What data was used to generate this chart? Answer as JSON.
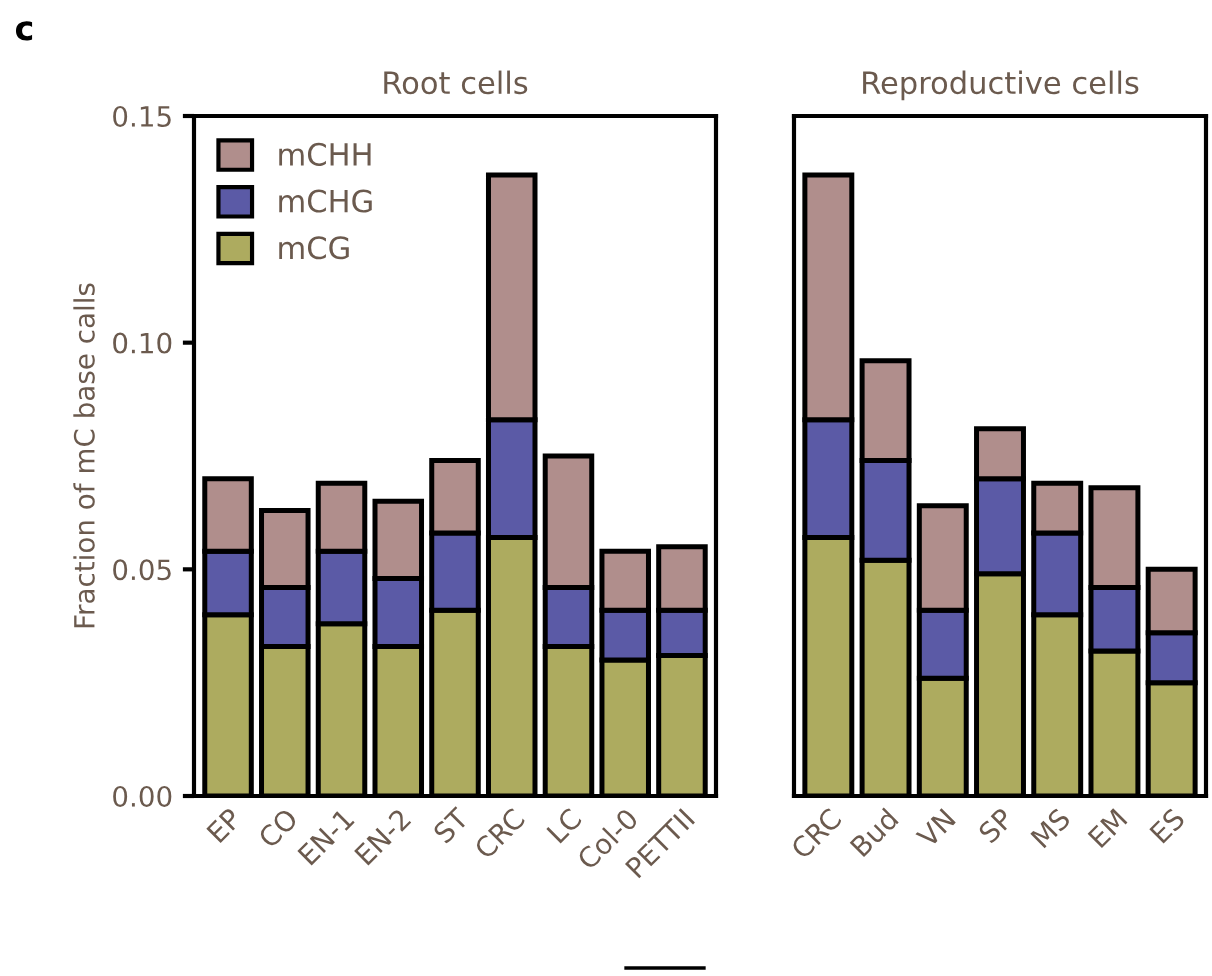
{
  "chart_data": [
    {
      "type": "bar",
      "stacked": true,
      "title": "Root cells",
      "ylabel": "Fraction of mC base calls",
      "annotations": [
        "c"
      ],
      "categories": [
        "EP",
        "CO",
        "EN-1",
        "EN-2",
        "ST",
        "CRC",
        "LC",
        "Col-0",
        "PETTII"
      ],
      "series": [
        {
          "name": "mCG",
          "color": "#adab5f",
          "values": [
            0.04,
            0.033,
            0.038,
            0.033,
            0.041,
            0.057,
            0.033,
            0.03,
            0.031
          ]
        },
        {
          "name": "mCHG",
          "color": "#5b5aa6",
          "values": [
            0.014,
            0.013,
            0.016,
            0.015,
            0.017,
            0.026,
            0.013,
            0.011,
            0.01
          ]
        },
        {
          "name": "mCHH",
          "color": "#b08e8c",
          "values": [
            0.016,
            0.017,
            0.015,
            0.017,
            0.016,
            0.054,
            0.029,
            0.013,
            0.014
          ]
        }
      ],
      "ylim": [
        0,
        0.15
      ],
      "yticks": [
        {
          "value": 0,
          "label": "0.00"
        },
        {
          "value": 0.05,
          "label": "0.05"
        },
        {
          "value": 0.1,
          "label": "0.10"
        },
        {
          "value": 0.15,
          "label": "0.15"
        }
      ],
      "legend": "top left",
      "grid": false
    },
    {
      "type": "bar",
      "stacked": true,
      "title": "Reproductive cells",
      "categories": [
        "CRC",
        "Bud",
        "VN",
        "SP",
        "MS",
        "EM",
        "ES"
      ],
      "series": [
        {
          "color": "#adab5f",
          "values": [
            0.057,
            0.052,
            0.026,
            0.049,
            0.04,
            0.032,
            0.025
          ]
        },
        {
          "color": "#5b5aa6",
          "values": [
            0.026,
            0.022,
            0.015,
            0.021,
            0.018,
            0.014,
            0.011
          ]
        },
        {
          "color": "#b08e8c",
          "values": [
            0.054,
            0.022,
            0.023,
            0.011,
            0.011,
            0.022,
            0.014
          ]
        }
      ],
      "ylim": [
        0,
        0.15
      ],
      "tick_labels": "x",
      "grid": false
    }
  ]
}
